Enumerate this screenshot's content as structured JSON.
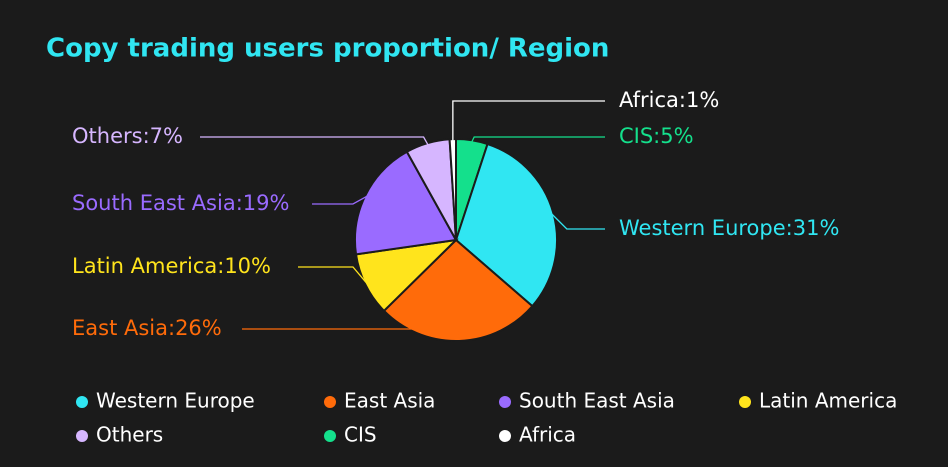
{
  "chart_data": {
    "type": "pie",
    "title": "Copy trading users proportion/ Region",
    "categories": [
      "CIS",
      "Western Europe",
      "East Asia",
      "Latin America",
      "South East Asia",
      "Others",
      "Africa"
    ],
    "values": [
      5,
      31,
      26,
      10,
      19,
      7,
      1
    ],
    "value_labels": [
      "CIS:5%",
      "Western Europe:31%",
      "East Asia:26%",
      "Latin America:10%",
      "South East Asia:19%",
      "Others:7%",
      "Africa:1%"
    ],
    "colors": [
      "#14e08c",
      "#30e6f2",
      "#ff6b0a",
      "#ffe41c",
      "#9a6bff",
      "#d6b6ff",
      "#ffffff"
    ],
    "legend": true
  }
}
